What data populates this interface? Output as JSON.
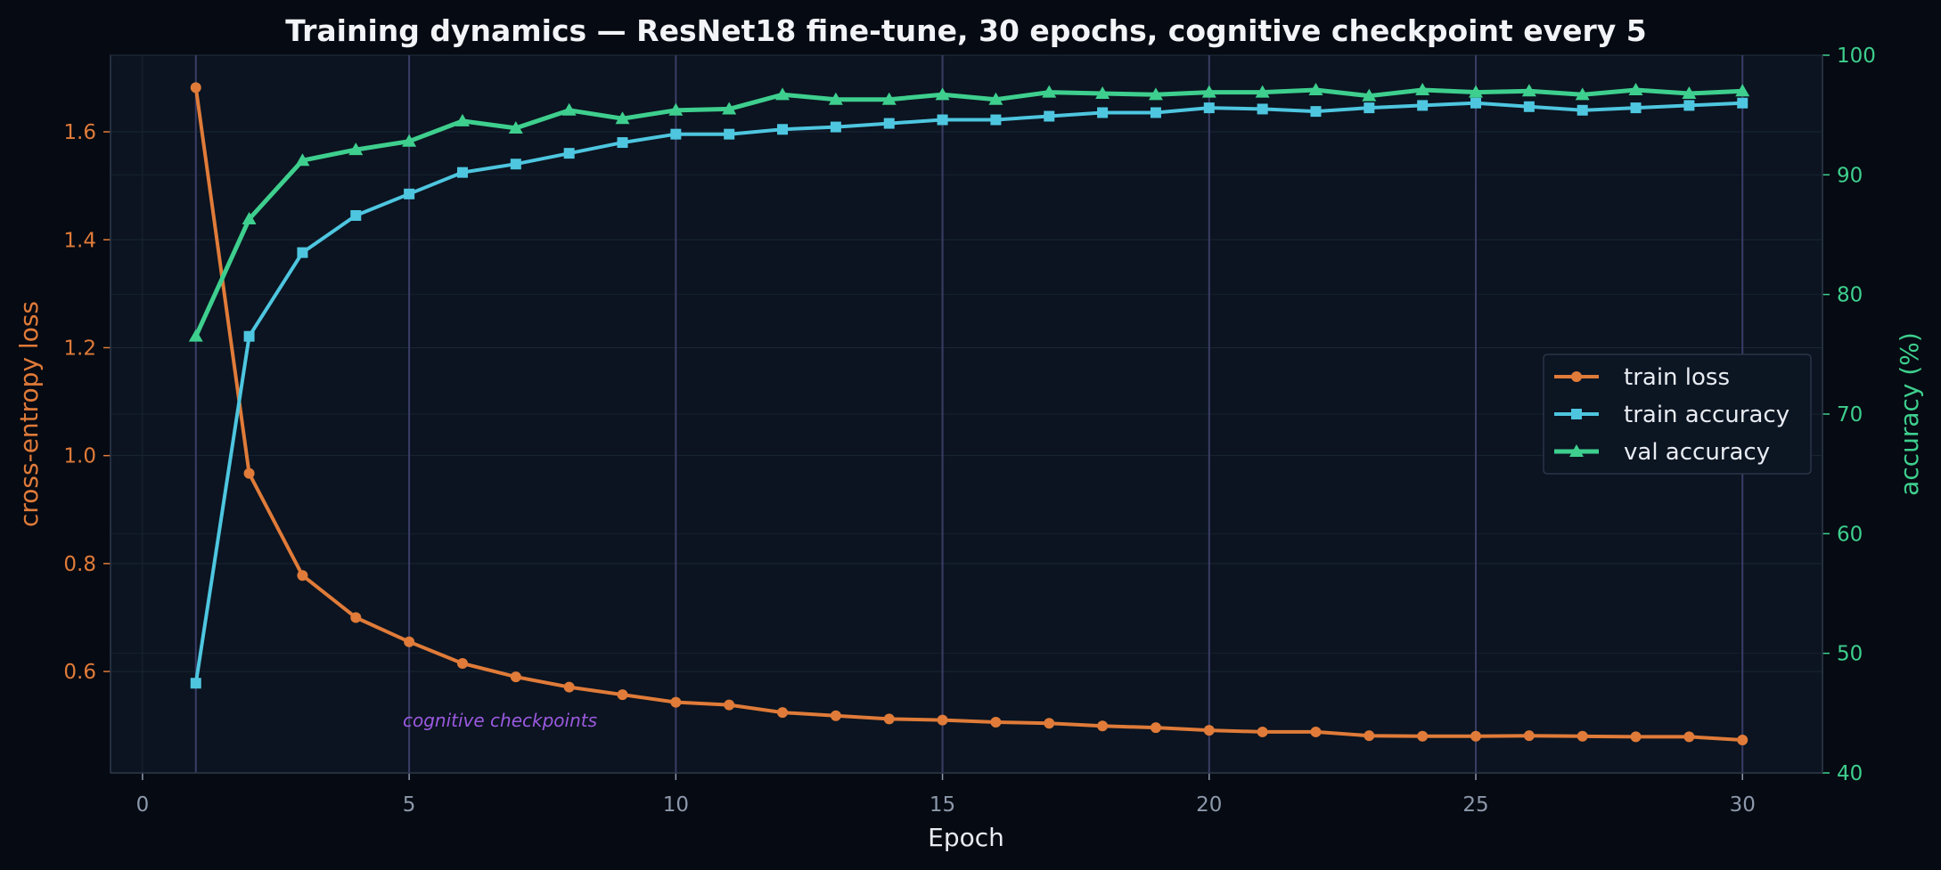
{
  "chart_data": {
    "type": "line",
    "title": "Training dynamics — ResNet18 fine-tune, 30 epochs, cognitive checkpoint every 5",
    "xlabel": "Epoch",
    "ylabel_left": "cross-entropy loss",
    "ylabel_right": "accuracy (%)",
    "xlim": [
      -0.6,
      31.5
    ],
    "ylim_left": [
      0.412,
      1.742
    ],
    "ylim_right": [
      40,
      100
    ],
    "x_ticks": [
      0,
      5,
      10,
      15,
      20,
      25,
      30
    ],
    "y_ticks_left": [
      0.6,
      0.8,
      1.0,
      1.2,
      1.4,
      1.6
    ],
    "y_ticks_right": [
      40,
      50,
      60,
      70,
      80,
      90,
      100
    ],
    "x": [
      1,
      2,
      3,
      4,
      5,
      6,
      7,
      8,
      9,
      10,
      11,
      12,
      13,
      14,
      15,
      16,
      17,
      18,
      19,
      20,
      21,
      22,
      23,
      24,
      25,
      26,
      27,
      28,
      29,
      30
    ],
    "checkpoints": [
      1,
      5,
      10,
      15,
      20,
      25,
      30
    ],
    "annotation": "cognitive checkpoints",
    "grid": true,
    "legend_position": "center-right",
    "colors": {
      "train_loss": "#e07b39",
      "train_acc": "#4ec6e0",
      "val_acc": "#3ecf8e",
      "checkpoint_line": "#3a3d66",
      "annotation": "#9b59e0",
      "left_axis": "#e07b39",
      "right_axis": "#3ecf8e",
      "x_ticks": "#8c98ab",
      "title": "#f2f4f8"
    },
    "series": [
      {
        "name": "train loss",
        "axis": "left",
        "marker": "circle",
        "values": [
          1.682,
          0.967,
          0.778,
          0.7,
          0.655,
          0.615,
          0.59,
          0.571,
          0.557,
          0.543,
          0.538,
          0.524,
          0.518,
          0.512,
          0.51,
          0.506,
          0.504,
          0.499,
          0.496,
          0.491,
          0.488,
          0.488,
          0.481,
          0.48,
          0.48,
          0.481,
          0.48,
          0.479,
          0.479,
          0.473
        ]
      },
      {
        "name": "train accuracy",
        "axis": "right",
        "marker": "square",
        "values": [
          47.5,
          76.5,
          83.5,
          86.6,
          88.4,
          90.2,
          90.9,
          91.8,
          92.7,
          93.4,
          93.4,
          93.8,
          94.0,
          94.3,
          94.6,
          94.6,
          94.9,
          95.2,
          95.2,
          95.6,
          95.5,
          95.3,
          95.6,
          95.8,
          96.0,
          95.7,
          95.4,
          95.6,
          95.8,
          96.0
        ]
      },
      {
        "name": "val accuracy",
        "axis": "right",
        "marker": "triangle",
        "values": [
          76.5,
          86.3,
          91.2,
          92.1,
          92.8,
          94.5,
          93.9,
          95.4,
          94.7,
          95.4,
          95.5,
          96.7,
          96.3,
          96.3,
          96.7,
          96.3,
          96.9,
          96.8,
          96.7,
          96.9,
          96.9,
          97.1,
          96.6,
          97.1,
          96.9,
          97.0,
          96.7,
          97.1,
          96.8,
          97.0
        ]
      }
    ]
  }
}
